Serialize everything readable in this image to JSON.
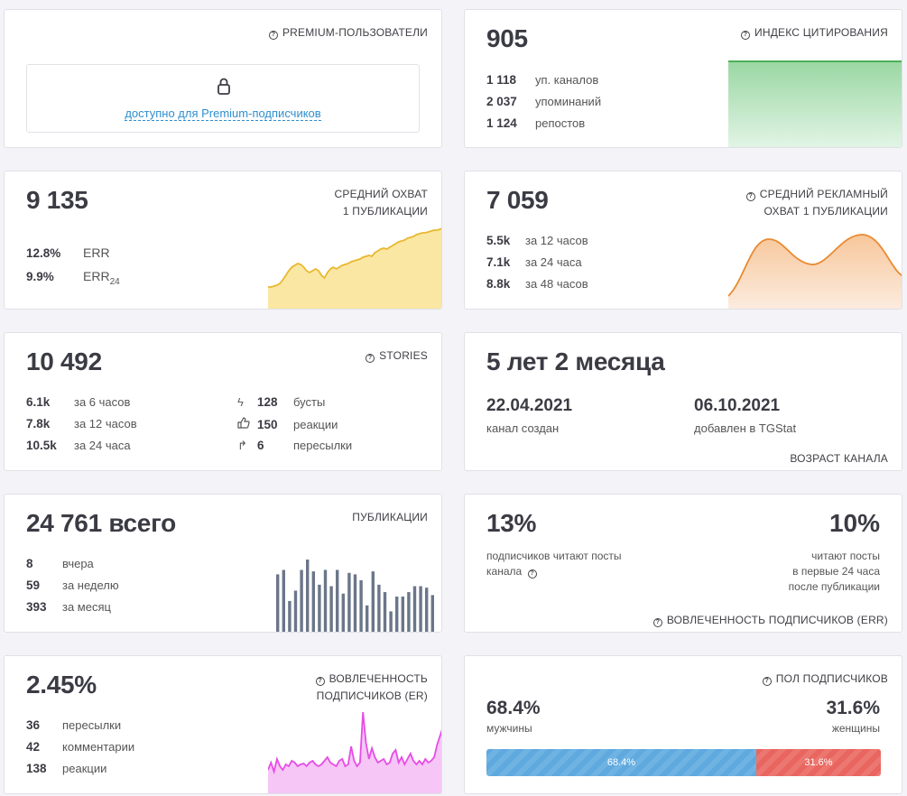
{
  "premium": {
    "title": "PREMIUM-ПОЛЬЗОВАТЕЛИ",
    "link": "доступно для Premium-подписчиков"
  },
  "citation": {
    "title": "ИНДЕКС ЦИТИРОВАНИЯ",
    "value": "905",
    "rows": [
      {
        "num": "1 118",
        "label": "уп. каналов"
      },
      {
        "num": "2 037",
        "label": "упоминаний"
      },
      {
        "num": "1 124",
        "label": "репостов"
      }
    ]
  },
  "reach": {
    "title_line1": "СРЕДНИЙ ОХВАТ",
    "title_line2": "1 ПУБЛИКАЦИИ",
    "value": "9 135",
    "rows": [
      {
        "num": "12.8%",
        "label": "ERR"
      },
      {
        "num": "9.9%",
        "label": "ERR",
        "sub": "24"
      }
    ],
    "chart_color": "#e8b82f"
  },
  "ad_reach": {
    "title_line1": "СРЕДНИЙ РЕКЛАМНЫЙ",
    "title_line2": "ОХВАТ 1 ПУБЛИКАЦИИ",
    "value": "7 059",
    "rows": [
      {
        "num": "5.5k",
        "label": "за 12 часов"
      },
      {
        "num": "7.1k",
        "label": "за 24 часа"
      },
      {
        "num": "8.8k",
        "label": "за 48 часов"
      }
    ],
    "chart_color": "#e98a30"
  },
  "stories": {
    "title": "STORIES",
    "value": "10 492",
    "left": [
      {
        "num": "6.1k",
        "label": "за 6 часов"
      },
      {
        "num": "7.8k",
        "label": "за 12 часов"
      },
      {
        "num": "10.5k",
        "label": "за 24 часа"
      }
    ],
    "right": [
      {
        "icon": "lightning-icon",
        "num": "128",
        "label": "бусты"
      },
      {
        "icon": "thumbs-up-icon",
        "num": "150",
        "label": "реакции"
      },
      {
        "icon": "forward-arrow-icon",
        "num": "6",
        "label": "пересылки"
      }
    ]
  },
  "age": {
    "value": "5 лет 2 месяца",
    "created_date": "22.04.2021",
    "created_label": "канал создан",
    "added_date": "06.10.2021",
    "added_label": "добавлен в TGStat",
    "footer": "ВОЗРАСТ КАНАЛА"
  },
  "publications": {
    "title": "ПУБЛИКАЦИИ",
    "value": "24 761 всего",
    "rows": [
      {
        "num": "8",
        "label": "вчера"
      },
      {
        "num": "59",
        "label": "за неделю"
      },
      {
        "num": "393",
        "label": "за месяц"
      }
    ],
    "bars": [
      0.8,
      0.86,
      0.44,
      0.58,
      0.86,
      1.0,
      0.84,
      0.66,
      0.86,
      0.64,
      0.86,
      0.54,
      0.82,
      0.8,
      0.72,
      0.38,
      0.84,
      0.66,
      0.56,
      0.3,
      0.5,
      0.5,
      0.56,
      0.64,
      0.64,
      0.62,
      0.52
    ],
    "bar_color": "#6b7689"
  },
  "err": {
    "pct_left": "13%",
    "desc_left_1": "подписчиков читают посты",
    "desc_left_2": "канала",
    "pct_right": "10%",
    "desc_right_1": "читают посты",
    "desc_right_2": "в первые 24 часа",
    "desc_right_3": "после публикации",
    "footer": "ВОВЛЕЧЕННОСТЬ ПОДПИСЧИКОВ (ERR)"
  },
  "er": {
    "title_line1": "ВОВЛЕЧЕННОСТЬ",
    "title_line2": "ПОДПИСЧИКОВ (ER)",
    "value": "2.45%",
    "rows": [
      {
        "num": "36",
        "label": "пересылки"
      },
      {
        "num": "42",
        "label": "комментарии"
      },
      {
        "num": "138",
        "label": "реакции"
      }
    ],
    "chart_color": "#e64ce6"
  },
  "gender": {
    "title": "ПОЛ ПОДПИСЧИКОВ",
    "male_pct": "68.4%",
    "male_label": "мужчины",
    "female_pct": "31.6%",
    "female_label": "женщины",
    "male_share": 0.684,
    "male_color": "#5fa9de",
    "female_color": "#e8665f"
  }
}
